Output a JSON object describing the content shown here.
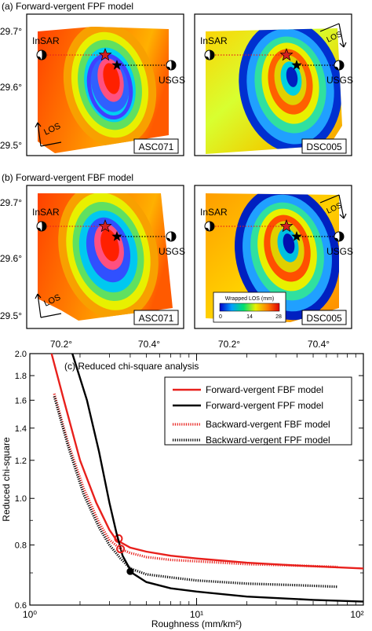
{
  "panel_a": {
    "title": "(a) Forward-vergent FPF model",
    "maps": [
      {
        "tag": "ASC071",
        "los_label": "LOS"
      },
      {
        "tag": "DSC005",
        "los_label": "LOS"
      }
    ]
  },
  "panel_b": {
    "title": "(b) Forward-vergent FBF model",
    "maps": [
      {
        "tag": "ASC071",
        "los_label": "LOS"
      },
      {
        "tag": "DSC005",
        "los_label": "LOS"
      }
    ]
  },
  "map_labels": {
    "insar": "InSAR",
    "usgs": "USGS"
  },
  "lat_ticks": [
    "29.7°",
    "29.6°",
    "29.5°"
  ],
  "lon_ticks": [
    "70.2°",
    "70.4°"
  ],
  "colorbar": {
    "title": "Wrapped LOS (mm)",
    "ticks": [
      "0",
      "14",
      "28"
    ]
  },
  "colors": {
    "fbf_forward": "#e8201c",
    "fpf_forward": "#000000",
    "star_insar": "#d22020",
    "star_usgs": "#000000"
  },
  "chart_data": {
    "type": "line",
    "title": "(c) Reduced chi-square analysis",
    "xlabel": "Roughness (mm/km²)",
    "ylabel": "Reduced chi-square",
    "x_scale": "log",
    "y_scale": "log",
    "xlim": [
      1,
      100
    ],
    "ylim": [
      0.6,
      2.0
    ],
    "x_ticks": [
      "10⁰",
      "10¹",
      "10²"
    ],
    "y_ticks": [
      "2.0",
      "1.8",
      "1.6",
      "1.4",
      "1.2",
      "1.0",
      "0.8",
      "0.6"
    ],
    "y_tick_values": [
      2.0,
      1.8,
      1.6,
      1.4,
      1.2,
      1.0,
      0.8,
      0.6
    ],
    "legend_position": "top-right",
    "series": [
      {
        "name": "Forward-vergent FBF model",
        "style": "solid",
        "color": "#e8201c",
        "points": [
          [
            1.35,
            2.0
          ],
          [
            1.6,
            1.6
          ],
          [
            2.0,
            1.2
          ],
          [
            2.5,
            0.98
          ],
          [
            3.0,
            0.86
          ],
          [
            3.3,
            0.82
          ],
          [
            4,
            0.79
          ],
          [
            5,
            0.775
          ],
          [
            7,
            0.76
          ],
          [
            10,
            0.75
          ],
          [
            20,
            0.735
          ],
          [
            40,
            0.725
          ],
          [
            100,
            0.715
          ]
        ],
        "optimum": [
          3.4,
          0.825
        ]
      },
      {
        "name": "Forward-vergent FPF model",
        "style": "solid",
        "color": "#000000",
        "points": [
          [
            1.8,
            2.0
          ],
          [
            2.2,
            1.6
          ],
          [
            2.6,
            1.25
          ],
          [
            3.0,
            0.98
          ],
          [
            3.3,
            0.85
          ],
          [
            3.6,
            0.76
          ],
          [
            4.1,
            0.7
          ],
          [
            5,
            0.67
          ],
          [
            7,
            0.65
          ],
          [
            10,
            0.64
          ],
          [
            20,
            0.625
          ],
          [
            50,
            0.615
          ],
          [
            100,
            0.61
          ]
        ],
        "optimum": [
          4.0,
          0.705
        ]
      },
      {
        "name": "Backward-vergent FBF model",
        "style": "dotted",
        "color": "#e8201c",
        "points": [
          [
            1.4,
            1.65
          ],
          [
            1.7,
            1.3
          ],
          [
            2.1,
            1.05
          ],
          [
            2.6,
            0.89
          ],
          [
            3.0,
            0.82
          ],
          [
            3.5,
            0.785
          ],
          [
            4,
            0.77
          ],
          [
            5,
            0.755
          ],
          [
            7,
            0.745
          ],
          [
            10,
            0.74
          ],
          [
            20,
            0.73
          ],
          [
            40,
            0.725
          ],
          [
            70,
            0.72
          ]
        ],
        "optimum": [
          3.5,
          0.785
        ]
      },
      {
        "name": "Backward-vergent FPF model",
        "style": "dotted",
        "color": "#000000",
        "points": [
          [
            1.4,
            1.63
          ],
          [
            1.7,
            1.28
          ],
          [
            2.1,
            1.02
          ],
          [
            2.6,
            0.87
          ],
          [
            3.0,
            0.8
          ],
          [
            3.5,
            0.75
          ],
          [
            4,
            0.715
          ],
          [
            5,
            0.695
          ],
          [
            7,
            0.685
          ],
          [
            10,
            0.675
          ],
          [
            20,
            0.665
          ],
          [
            40,
            0.66
          ],
          [
            70,
            0.655
          ]
        ],
        "optimum": [
          4.0,
          0.705
        ]
      }
    ]
  }
}
